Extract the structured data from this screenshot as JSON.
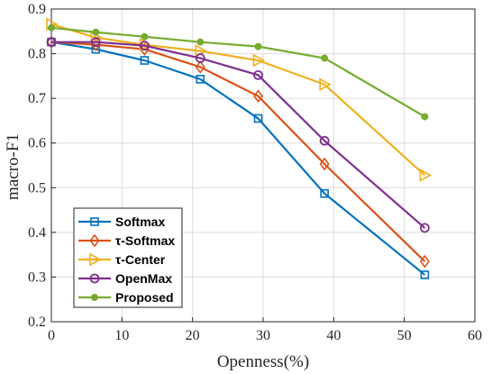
{
  "chart_data": {
    "type": "line",
    "title": "",
    "xlabel": "Openness(%)",
    "ylabel": "macro-F1",
    "xlim": [
      0,
      60
    ],
    "ylim": [
      0.2,
      0.9
    ],
    "xticks": [
      0,
      10,
      20,
      30,
      40,
      50,
      60
    ],
    "yticks": [
      0.2,
      0.3,
      0.4,
      0.5,
      0.6,
      0.7,
      0.8,
      0.9
    ],
    "xtick_labels": [
      "0",
      "10",
      "20",
      "30",
      "40",
      "50",
      "60"
    ],
    "ytick_labels": [
      "0.2",
      "0.3",
      "0.4",
      "0.5",
      "0.6",
      "0.7",
      "0.8",
      "0.9"
    ],
    "grid": true,
    "legend_position": "bottom-left",
    "x": [
      0,
      6.3,
      13.2,
      21.1,
      29.3,
      38.7,
      52.9
    ],
    "series": [
      {
        "name": "Softmax",
        "color": "#0072BD",
        "marker": "square",
        "values": [
          0.826,
          0.81,
          0.785,
          0.743,
          0.655,
          0.487,
          0.305
        ]
      },
      {
        "name": "τ-Softmax",
        "color": "#D95319",
        "marker": "diamond",
        "values": [
          0.826,
          0.82,
          0.81,
          0.77,
          0.705,
          0.553,
          0.335
        ]
      },
      {
        "name": "τ-Center",
        "color": "#EDB120",
        "marker": "triangle-right",
        "values": [
          0.866,
          0.836,
          0.82,
          0.806,
          0.785,
          0.731,
          0.528
        ]
      },
      {
        "name": "OpenMax",
        "color": "#7E2F8E",
        "marker": "circle",
        "values": [
          0.826,
          0.826,
          0.818,
          0.79,
          0.752,
          0.605,
          0.41
        ]
      },
      {
        "name": "Proposed",
        "color": "#77AC30",
        "marker": "dot",
        "values": [
          0.858,
          0.848,
          0.838,
          0.826,
          0.816,
          0.79,
          0.659
        ]
      }
    ]
  }
}
